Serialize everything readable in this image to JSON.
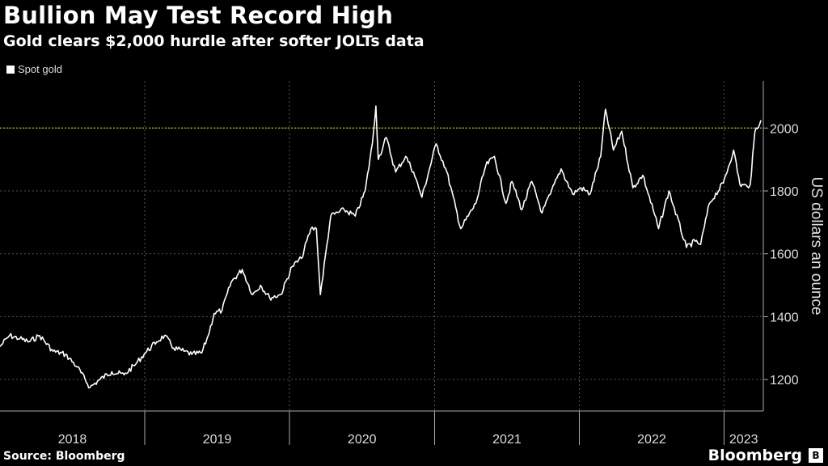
{
  "header": {
    "title": "Bullion May Test Record High",
    "subtitle": "Gold clears $2,000 hurdle after softer JOLTs data"
  },
  "footer": {
    "source": "Source: Bloomberg",
    "brand": "Bloomberg"
  },
  "colors": {
    "background": "#000000",
    "line": "#ffffff",
    "grid": "#555555",
    "reference_line": "#8fce00"
  },
  "chart_data": {
    "type": "line",
    "title": "Bullion May Test Record High",
    "subtitle": "Gold clears $2,000 hurdle after softer JOLTs data",
    "ylabel": "US dollars an ounce",
    "ylim": [
      1100,
      2150
    ],
    "y_ticks": [
      1200,
      1400,
      1600,
      1800,
      2000
    ],
    "y_tick_labels": [
      "1200",
      "1400",
      "1600",
      "1800",
      "2000"
    ],
    "xlim": [
      "2018-01-01",
      "2023-04-10"
    ],
    "x_tick_labels": [
      "2018",
      "2019",
      "2020",
      "2021",
      "2022",
      "2023"
    ],
    "reference_line": {
      "y": 2000,
      "style": "dotted",
      "color": "#8fce00"
    },
    "legend": {
      "entries": [
        "Spot gold"
      ],
      "position": "top-left"
    },
    "grid": true,
    "series": [
      {
        "name": "Spot gold",
        "x": [
          "2018-01-01",
          "2018-01-25",
          "2018-02-20",
          "2018-03-15",
          "2018-04-11",
          "2018-05-15",
          "2018-06-15",
          "2018-07-15",
          "2018-08-16",
          "2018-09-10",
          "2018-10-10",
          "2018-11-10",
          "2018-12-10",
          "2018-12-31",
          "2019-01-31",
          "2019-02-20",
          "2019-03-15",
          "2019-04-10",
          "2019-04-30",
          "2019-05-25",
          "2019-06-10",
          "2019-06-25",
          "2019-07-15",
          "2019-08-07",
          "2019-09-04",
          "2019-09-30",
          "2019-10-20",
          "2019-11-12",
          "2019-12-10",
          "2020-01-08",
          "2020-01-31",
          "2020-02-24",
          "2020-03-09",
          "2020-03-19",
          "2020-04-14",
          "2020-05-18",
          "2020-06-15",
          "2020-07-10",
          "2020-07-28",
          "2020-08-06",
          "2020-08-12",
          "2020-09-01",
          "2020-09-25",
          "2020-10-20",
          "2020-11-09",
          "2020-11-30",
          "2021-01-05",
          "2021-02-01",
          "2021-03-08",
          "2021-04-15",
          "2021-05-10",
          "2021-06-01",
          "2021-06-30",
          "2021-07-15",
          "2021-08-09",
          "2021-09-03",
          "2021-09-29",
          "2021-10-20",
          "2021-11-16",
          "2021-12-15",
          "2022-01-05",
          "2022-01-28",
          "2022-02-24",
          "2022-03-08",
          "2022-03-28",
          "2022-04-18",
          "2022-05-16",
          "2022-06-10",
          "2022-07-20",
          "2022-08-15",
          "2022-09-28",
          "2022-10-20",
          "2022-11-03",
          "2022-11-25",
          "2022-12-30",
          "2023-01-25",
          "2023-02-10",
          "2023-02-28",
          "2023-03-08",
          "2023-03-20",
          "2023-04-04"
        ],
        "values": [
          1305,
          1340,
          1330,
          1320,
          1340,
          1290,
          1280,
          1240,
          1175,
          1200,
          1225,
          1215,
          1250,
          1282,
          1320,
          1340,
          1300,
          1290,
          1280,
          1285,
          1340,
          1410,
          1420,
          1510,
          1550,
          1470,
          1500,
          1460,
          1470,
          1560,
          1585,
          1680,
          1680,
          1470,
          1720,
          1740,
          1720,
          1800,
          1950,
          2070,
          1900,
          1970,
          1860,
          1910,
          1860,
          1780,
          1950,
          1860,
          1680,
          1760,
          1880,
          1910,
          1760,
          1830,
          1740,
          1830,
          1730,
          1790,
          1870,
          1790,
          1810,
          1790,
          1910,
          2060,
          1930,
          1990,
          1810,
          1850,
          1680,
          1800,
          1620,
          1640,
          1630,
          1760,
          1825,
          1930,
          1820,
          1815,
          1820,
          1990,
          2025
        ]
      }
    ]
  }
}
